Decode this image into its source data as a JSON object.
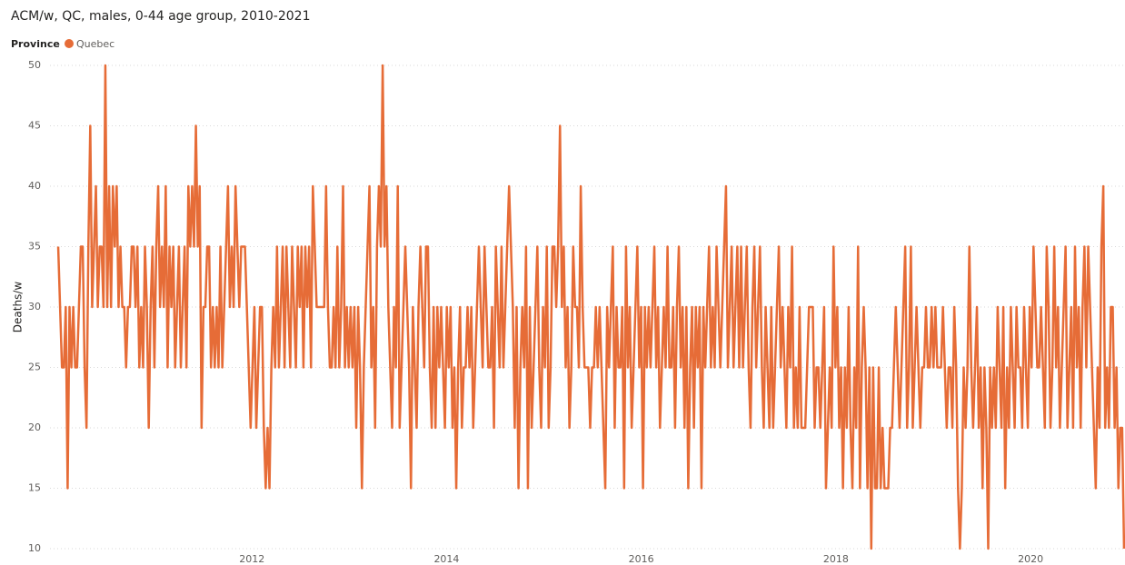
{
  "chart_data": {
    "type": "line",
    "title": "ACM/w, QC, males, 0-44 age group, 2010-2021",
    "legend_title": "Province",
    "y_label": "Deaths/w",
    "xlim": [
      2010,
      2020.97
    ],
    "xticks": [
      2012,
      2014,
      2016,
      2018,
      2020
    ],
    "ylim": [
      10,
      50
    ],
    "yticks": [
      10,
      15,
      20,
      25,
      30,
      35,
      40,
      45,
      50
    ],
    "grid": true,
    "series": [
      {
        "name": "Quebec",
        "color": "#E66C37",
        "values": [
          35,
          30,
          25,
          25,
          30,
          15,
          30,
          25,
          30,
          25,
          25,
          30,
          35,
          35,
          25,
          20,
          35,
          45,
          30,
          35,
          40,
          30,
          35,
          35,
          30,
          50,
          30,
          40,
          30,
          40,
          35,
          40,
          30,
          35,
          30,
          30,
          25,
          30,
          30,
          35,
          35,
          30,
          35,
          25,
          30,
          25,
          35,
          30,
          20,
          30,
          35,
          25,
          35,
          40,
          30,
          35,
          30,
          40,
          25,
          35,
          30,
          35,
          25,
          30,
          35,
          25,
          30,
          35,
          25,
          40,
          35,
          40,
          35,
          45,
          35,
          40,
          20,
          30,
          30,
          35,
          35,
          25,
          30,
          25,
          30,
          25,
          35,
          25,
          30,
          35,
          40,
          30,
          35,
          30,
          40,
          35,
          30,
          35,
          35,
          35,
          30,
          25,
          20,
          25,
          30,
          20,
          25,
          30,
          30,
          20,
          15,
          20,
          15,
          25,
          30,
          25,
          35,
          25,
          30,
          35,
          25,
          35,
          30,
          25,
          35,
          30,
          25,
          35,
          30,
          35,
          25,
          35,
          30,
          35,
          25,
          40,
          35,
          30,
          30,
          30,
          30,
          30,
          40,
          30,
          25,
          25,
          30,
          25,
          35,
          25,
          30,
          40,
          25,
          30,
          25,
          30,
          25,
          30,
          20,
          30,
          25,
          15,
          25,
          30,
          35,
          40,
          25,
          30,
          20,
          35,
          40,
          35,
          50,
          35,
          40,
          30,
          25,
          20,
          30,
          25,
          40,
          20,
          25,
          30,
          35,
          30,
          25,
          15,
          30,
          25,
          20,
          30,
          35,
          30,
          25,
          35,
          35,
          25,
          20,
          30,
          20,
          30,
          25,
          30,
          25,
          20,
          30,
          25,
          30,
          20,
          25,
          15,
          25,
          30,
          20,
          25,
          25,
          30,
          25,
          30,
          20,
          25,
          30,
          35,
          30,
          25,
          35,
          30,
          25,
          25,
          30,
          20,
          35,
          30,
          25,
          35,
          25,
          30,
          35,
          40,
          35,
          30,
          20,
          30,
          15,
          25,
          30,
          25,
          35,
          15,
          30,
          20,
          25,
          30,
          35,
          25,
          20,
          30,
          25,
          35,
          20,
          25,
          35,
          35,
          30,
          35,
          45,
          30,
          35,
          25,
          30,
          20,
          25,
          35,
          30,
          30,
          25,
          40,
          30,
          25,
          25,
          25,
          20,
          25,
          25,
          30,
          25,
          30,
          25,
          20,
          15,
          30,
          25,
          30,
          35,
          20,
          30,
          25,
          25,
          30,
          15,
          35,
          25,
          30,
          20,
          25,
          30,
          35,
          25,
          30,
          15,
          30,
          25,
          30,
          25,
          30,
          35,
          25,
          30,
          20,
          25,
          30,
          25,
          35,
          25,
          25,
          30,
          20,
          30,
          35,
          25,
          30,
          20,
          30,
          15,
          25,
          30,
          20,
          30,
          25,
          30,
          15,
          30,
          25,
          30,
          35,
          25,
          30,
          25,
          35,
          30,
          25,
          30,
          35,
          40,
          25,
          30,
          35,
          25,
          30,
          35,
          25,
          35,
          25,
          30,
          35,
          25,
          20,
          30,
          35,
          25,
          30,
          35,
          25,
          20,
          30,
          25,
          20,
          30,
          20,
          25,
          30,
          35,
          25,
          30,
          25,
          20,
          30,
          25,
          35,
          20,
          25,
          20,
          30,
          20,
          20,
          20,
          25,
          30,
          30,
          30,
          20,
          25,
          25,
          20,
          25,
          30,
          15,
          20,
          25,
          20,
          35,
          25,
          30,
          20,
          25,
          15,
          25,
          20,
          30,
          20,
          15,
          25,
          20,
          35,
          15,
          25,
          30,
          25,
          15,
          25,
          10,
          25,
          15,
          15,
          25,
          15,
          20,
          15,
          15,
          15,
          20,
          20,
          25,
          30,
          25,
          20,
          25,
          30,
          35,
          20,
          25,
          35,
          20,
          25,
          30,
          25,
          20,
          25,
          25,
          30,
          25,
          25,
          30,
          25,
          30,
          25,
          25,
          25,
          30,
          25,
          20,
          25,
          25,
          20,
          30,
          25,
          15,
          10,
          15,
          25,
          20,
          25,
          35,
          25,
          20,
          25,
          30,
          20,
          25,
          15,
          25,
          20,
          10,
          25,
          20,
          25,
          20,
          30,
          25,
          20,
          30,
          15,
          25,
          20,
          30,
          25,
          20,
          30,
          25,
          25,
          20,
          30,
          25,
          20,
          30,
          25,
          35,
          30,
          25,
          25,
          30,
          25,
          20,
          35,
          30,
          20,
          25,
          35,
          25,
          30,
          20,
          25,
          30,
          35,
          20,
          25,
          30,
          20,
          35,
          25,
          30,
          20,
          30,
          35,
          25,
          35,
          30,
          25,
          20,
          15,
          25,
          20,
          35,
          40,
          20,
          25,
          20,
          30,
          30,
          20,
          25,
          15,
          20,
          20,
          10
        ]
      }
    ]
  }
}
